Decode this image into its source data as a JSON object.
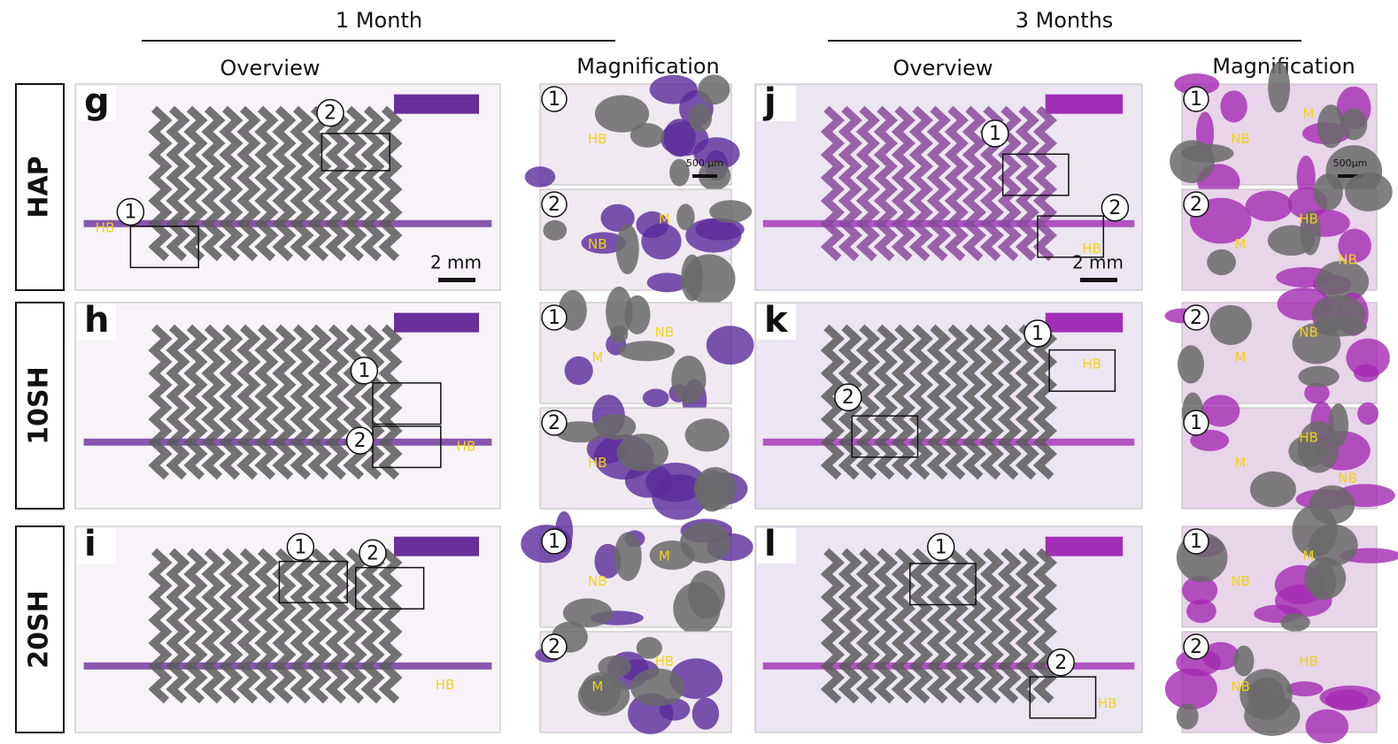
{
  "columns": [
    {
      "group": "1 Month",
      "overview": "Overview",
      "magnification": "Magnification"
    },
    {
      "group": "3 Months",
      "overview": "Overview",
      "magnification": "Magnification"
    }
  ],
  "rows": [
    {
      "label": "HAP",
      "panels": [
        {
          "letter": "g",
          "markers": [
            "1",
            "2"
          ],
          "tissue": [
            "HB"
          ],
          "scale": "2 mm",
          "insets": [
            {
              "marker": "1",
              "tissue": [
                "HB"
              ],
              "scale": "500 μm"
            },
            {
              "marker": "2",
              "tissue": [
                "NB",
                "M"
              ]
            }
          ]
        },
        {
          "letter": "j",
          "markers": [
            "1",
            "2"
          ],
          "tissue": [
            "HB"
          ],
          "scale": "2 mm",
          "insets": [
            {
              "marker": "1",
              "tissue": [
                "NB",
                "M"
              ],
              "scale": "500μm"
            },
            {
              "marker": "2",
              "tissue": [
                "M",
                "HB",
                "NB"
              ]
            }
          ]
        }
      ]
    },
    {
      "label": "10SH",
      "panels": [
        {
          "letter": "h",
          "markers": [
            "1",
            "2"
          ],
          "tissue": [
            "HB"
          ],
          "insets": [
            {
              "marker": "1",
              "tissue": [
                "M",
                "NB"
              ]
            },
            {
              "marker": "2",
              "tissue": [
                "HB"
              ]
            }
          ]
        },
        {
          "letter": "k",
          "markers": [
            "1",
            "2"
          ],
          "tissue": [
            "HB"
          ],
          "insets": [
            {
              "marker": "2",
              "tissue": [
                "M",
                "NB"
              ]
            },
            {
              "marker": "1",
              "tissue": [
                "M",
                "HB",
                "NB"
              ]
            }
          ]
        }
      ]
    },
    {
      "label": "20SH",
      "panels": [
        {
          "letter": "i",
          "markers": [
            "1",
            "2"
          ],
          "tissue": [
            "HB"
          ],
          "insets": [
            {
              "marker": "1",
              "tissue": [
                "NB",
                "M"
              ]
            },
            {
              "marker": "2",
              "tissue": [
                "M",
                "HB"
              ]
            }
          ]
        },
        {
          "letter": "l",
          "markers": [
            "1",
            "2"
          ],
          "tissue": [
            "HB"
          ],
          "insets": [
            {
              "marker": "1",
              "tissue": [
                "NB",
                "M"
              ]
            },
            {
              "marker": "2",
              "tissue": [
                "NB",
                "HB"
              ]
            }
          ]
        }
      ]
    }
  ]
}
